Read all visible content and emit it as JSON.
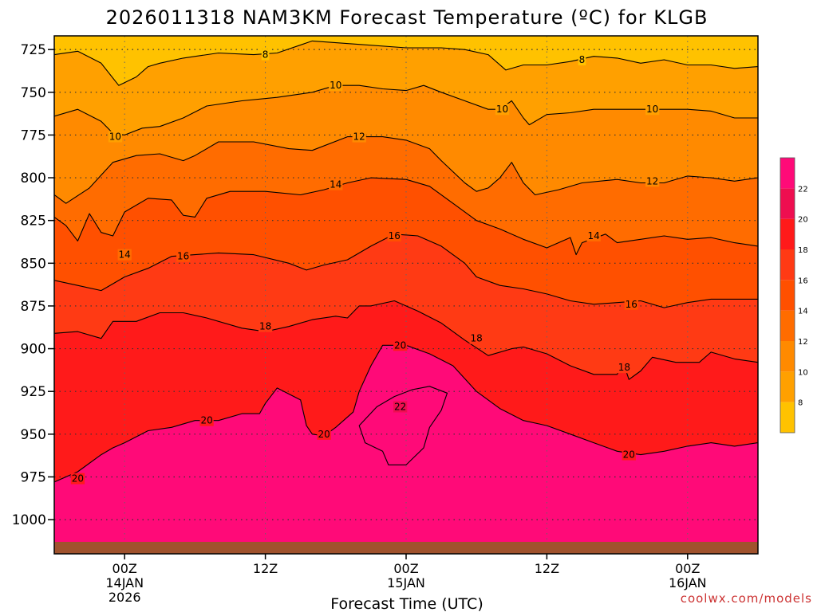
{
  "chart_data": {
    "type": "contour",
    "title": "2026011318 NAM3KM Forecast Temperature (ºC) for KLGB",
    "xlabel": "Forecast Time (UTC)",
    "ylabel": "",
    "x_ticks": [
      {
        "hour": 6,
        "lines": [
          "00Z",
          "14JAN",
          "2026"
        ]
      },
      {
        "hour": 18,
        "lines": [
          "12Z"
        ]
      },
      {
        "hour": 30,
        "lines": [
          "00Z",
          "15JAN"
        ]
      },
      {
        "hour": 42,
        "lines": [
          "12Z"
        ]
      },
      {
        "hour": 54,
        "lines": [
          "00Z",
          "16JAN"
        ]
      }
    ],
    "xlim": [
      0,
      60
    ],
    "y_ticks": [
      725,
      750,
      775,
      800,
      825,
      850,
      875,
      900,
      925,
      950,
      975,
      1000
    ],
    "ylim": [
      717,
      1020
    ],
    "y_axis": "pressure (hPa), increasing downward",
    "ground_level_hPa": 1013,
    "levels": [
      8,
      10,
      12,
      14,
      16,
      18,
      20,
      22
    ],
    "level_colors": [
      "#ffc200",
      "#ffa000",
      "#ff8a00",
      "#ff6c00",
      "#ff5000",
      "#ff3a14",
      "#ff1a1a",
      "#ee0e50",
      "#ff0a78"
    ],
    "colorbar_labels": [
      "8",
      "10",
      "12",
      "14",
      "16",
      "18",
      "20",
      "22"
    ],
    "isotherms": [
      {
        "value": 8,
        "points": [
          [
            0,
            728
          ],
          [
            2,
            726
          ],
          [
            4,
            733
          ],
          [
            5.5,
            746
          ],
          [
            7,
            741
          ],
          [
            8,
            735
          ],
          [
            9,
            733
          ],
          [
            11,
            730
          ],
          [
            14,
            727
          ],
          [
            17,
            728
          ],
          [
            19,
            727
          ],
          [
            22,
            720
          ],
          [
            26,
            722
          ],
          [
            30,
            724
          ],
          [
            33,
            724
          ],
          [
            35,
            725
          ],
          [
            37,
            728
          ],
          [
            38.5,
            737
          ],
          [
            40,
            734
          ],
          [
            42,
            734
          ],
          [
            44,
            732
          ],
          [
            46,
            729
          ],
          [
            48,
            730
          ],
          [
            50,
            733
          ],
          [
            52,
            731
          ],
          [
            54,
            734
          ],
          [
            56,
            734
          ],
          [
            58,
            736
          ],
          [
            60,
            735
          ]
        ],
        "labels": [
          [
            18,
            728
          ],
          [
            45,
            731
          ]
        ]
      },
      {
        "value": 10,
        "points": [
          [
            0,
            764
          ],
          [
            2,
            760
          ],
          [
            4,
            767
          ],
          [
            5,
            774
          ],
          [
            6,
            775
          ],
          [
            7.5,
            771
          ],
          [
            9,
            770
          ],
          [
            11,
            765
          ],
          [
            13,
            758
          ],
          [
            16,
            755
          ],
          [
            19,
            753
          ],
          [
            22,
            750
          ],
          [
            24,
            746
          ],
          [
            26,
            746
          ],
          [
            28,
            748
          ],
          [
            30,
            749
          ],
          [
            31.5,
            746
          ],
          [
            33,
            750
          ],
          [
            35,
            755
          ],
          [
            37,
            760
          ],
          [
            38,
            760
          ],
          [
            39,
            755
          ],
          [
            40,
            765
          ],
          [
            40.5,
            769
          ],
          [
            42,
            763
          ],
          [
            44,
            762
          ],
          [
            46,
            760
          ],
          [
            48,
            760
          ],
          [
            50,
            760
          ],
          [
            52,
            760
          ],
          [
            54,
            760
          ],
          [
            56,
            761
          ],
          [
            58,
            765
          ],
          [
            60,
            765
          ]
        ],
        "labels": [
          [
            5.2,
            776
          ],
          [
            24,
            746
          ],
          [
            38.2,
            760
          ],
          [
            51,
            760
          ]
        ]
      },
      {
        "value": 12,
        "points": [
          [
            0,
            810
          ],
          [
            1,
            815
          ],
          [
            3,
            806
          ],
          [
            5,
            791
          ],
          [
            7,
            787
          ],
          [
            9,
            786
          ],
          [
            11,
            790
          ],
          [
            12,
            787
          ],
          [
            14,
            779
          ],
          [
            17,
            779
          ],
          [
            20,
            783
          ],
          [
            22,
            784
          ],
          [
            25,
            776
          ],
          [
            28,
            776
          ],
          [
            30,
            778
          ],
          [
            32,
            783
          ],
          [
            33,
            790
          ],
          [
            35,
            803
          ],
          [
            36,
            808
          ],
          [
            37,
            806
          ],
          [
            38,
            800
          ],
          [
            39,
            791
          ],
          [
            39.5,
            797
          ],
          [
            40,
            803
          ],
          [
            41,
            810
          ],
          [
            43,
            807
          ],
          [
            45,
            803
          ],
          [
            48,
            801
          ],
          [
            50,
            803
          ],
          [
            52,
            803
          ],
          [
            54,
            799
          ],
          [
            56,
            800
          ],
          [
            58,
            802
          ],
          [
            60,
            800
          ]
        ],
        "labels": [
          [
            26,
            776
          ],
          [
            51,
            802
          ]
        ]
      },
      {
        "value": 14,
        "points": [
          [
            0,
            823
          ],
          [
            1,
            828
          ],
          [
            2,
            837
          ],
          [
            3,
            821
          ],
          [
            4,
            832
          ],
          [
            5,
            834
          ],
          [
            6,
            820
          ],
          [
            8,
            812
          ],
          [
            10,
            813
          ],
          [
            11,
            822
          ],
          [
            12,
            823
          ],
          [
            13,
            812
          ],
          [
            15,
            808
          ],
          [
            18,
            808
          ],
          [
            21,
            810
          ],
          [
            23,
            807
          ],
          [
            25,
            803
          ],
          [
            27,
            800
          ],
          [
            30,
            801
          ],
          [
            32,
            805
          ],
          [
            34,
            815
          ],
          [
            36,
            825
          ],
          [
            38,
            830
          ],
          [
            40,
            836
          ],
          [
            42,
            841
          ],
          [
            44,
            835
          ],
          [
            44.5,
            845
          ],
          [
            45,
            838
          ],
          [
            47,
            833
          ],
          [
            48,
            838
          ],
          [
            50,
            836
          ],
          [
            52,
            834
          ],
          [
            54,
            836
          ],
          [
            56,
            835
          ],
          [
            58,
            838
          ],
          [
            60,
            840
          ]
        ],
        "labels": [
          [
            6,
            845
          ],
          [
            24,
            804
          ],
          [
            46,
            834
          ]
        ]
      },
      {
        "value": 16,
        "points": [
          [
            0,
            860
          ],
          [
            2,
            863
          ],
          [
            4,
            866
          ],
          [
            5,
            862
          ],
          [
            6,
            858
          ],
          [
            8,
            853
          ],
          [
            10,
            846
          ],
          [
            12,
            845
          ],
          [
            14,
            844
          ],
          [
            17,
            845
          ],
          [
            20,
            850
          ],
          [
            21.5,
            854
          ],
          [
            23,
            851
          ],
          [
            25,
            848
          ],
          [
            27,
            840
          ],
          [
            29,
            833
          ],
          [
            31,
            834
          ],
          [
            33,
            840
          ],
          [
            35,
            850
          ],
          [
            36,
            858
          ],
          [
            38,
            863
          ],
          [
            40,
            865
          ],
          [
            42,
            868
          ],
          [
            44,
            872
          ],
          [
            46,
            874
          ],
          [
            48,
            873
          ],
          [
            50,
            872
          ],
          [
            52,
            876
          ],
          [
            54,
            873
          ],
          [
            56,
            871
          ],
          [
            58,
            871
          ],
          [
            60,
            871
          ]
        ],
        "labels": [
          [
            11,
            846
          ],
          [
            29,
            834
          ],
          [
            49.2,
            874
          ]
        ]
      },
      {
        "value": 18,
        "points": [
          [
            0,
            891
          ],
          [
            2,
            890
          ],
          [
            4,
            894
          ],
          [
            5,
            884
          ],
          [
            7,
            884
          ],
          [
            9,
            879
          ],
          [
            11,
            879
          ],
          [
            13,
            882
          ],
          [
            16,
            888
          ],
          [
            18,
            890
          ],
          [
            20,
            887
          ],
          [
            22,
            883
          ],
          [
            24,
            881
          ],
          [
            25,
            882
          ],
          [
            26,
            875
          ],
          [
            27,
            875
          ],
          [
            29,
            872
          ],
          [
            31,
            878
          ],
          [
            33,
            885
          ],
          [
            35,
            895
          ],
          [
            37,
            904
          ],
          [
            39,
            900
          ],
          [
            40,
            899
          ],
          [
            42,
            903
          ],
          [
            44,
            910
          ],
          [
            46,
            915
          ],
          [
            48,
            915
          ],
          [
            48.5,
            908
          ],
          [
            49,
            918
          ],
          [
            50,
            913
          ],
          [
            51,
            905
          ],
          [
            53,
            908
          ],
          [
            55,
            908
          ],
          [
            56,
            902
          ],
          [
            58,
            906
          ],
          [
            60,
            908
          ]
        ],
        "labels": [
          [
            18,
            887
          ],
          [
            36,
            894
          ],
          [
            48.6,
            911
          ]
        ]
      },
      {
        "value": 20,
        "points": [
          [
            0,
            978
          ],
          [
            2,
            972
          ],
          [
            4,
            962
          ],
          [
            5,
            958
          ],
          [
            6,
            955
          ],
          [
            8,
            948
          ],
          [
            10,
            946
          ],
          [
            12,
            942
          ],
          [
            14,
            942
          ],
          [
            16,
            938
          ],
          [
            17.5,
            938
          ],
          [
            18,
            932
          ],
          [
            19,
            923
          ],
          [
            21,
            930
          ],
          [
            21.5,
            945
          ],
          [
            22,
            950
          ],
          [
            23,
            951
          ],
          [
            24,
            946
          ],
          [
            25.5,
            937
          ],
          [
            26,
            925
          ],
          [
            27,
            910
          ],
          [
            28,
            898
          ],
          [
            30,
            898
          ],
          [
            32,
            903
          ],
          [
            34,
            910
          ],
          [
            36,
            925
          ],
          [
            38,
            935
          ],
          [
            40,
            942
          ],
          [
            42,
            945
          ],
          [
            44,
            950
          ],
          [
            46,
            955
          ],
          [
            48,
            960
          ],
          [
            50,
            962
          ],
          [
            52,
            960
          ],
          [
            54,
            957
          ],
          [
            56,
            955
          ],
          [
            58,
            957
          ],
          [
            60,
            955
          ]
        ],
        "labels": [
          [
            2,
            976
          ],
          [
            13,
            942
          ],
          [
            23,
            950
          ],
          [
            29.5,
            898
          ],
          [
            49,
            962
          ]
        ]
      },
      {
        "value": 22,
        "points": [
          [
            26,
            945
          ],
          [
            27.5,
            934
          ],
          [
            29,
            928
          ],
          [
            30.5,
            924
          ],
          [
            32,
            922
          ],
          [
            33.5,
            926
          ],
          [
            33,
            936
          ],
          [
            32,
            946
          ],
          [
            31.5,
            958
          ],
          [
            30,
            968
          ],
          [
            28.5,
            968
          ],
          [
            28,
            960
          ],
          [
            26.5,
            955
          ],
          [
            26,
            945
          ]
        ],
        "labels": [
          [
            29.5,
            934
          ]
        ]
      }
    ]
  },
  "credit": "coolwx.com/models"
}
